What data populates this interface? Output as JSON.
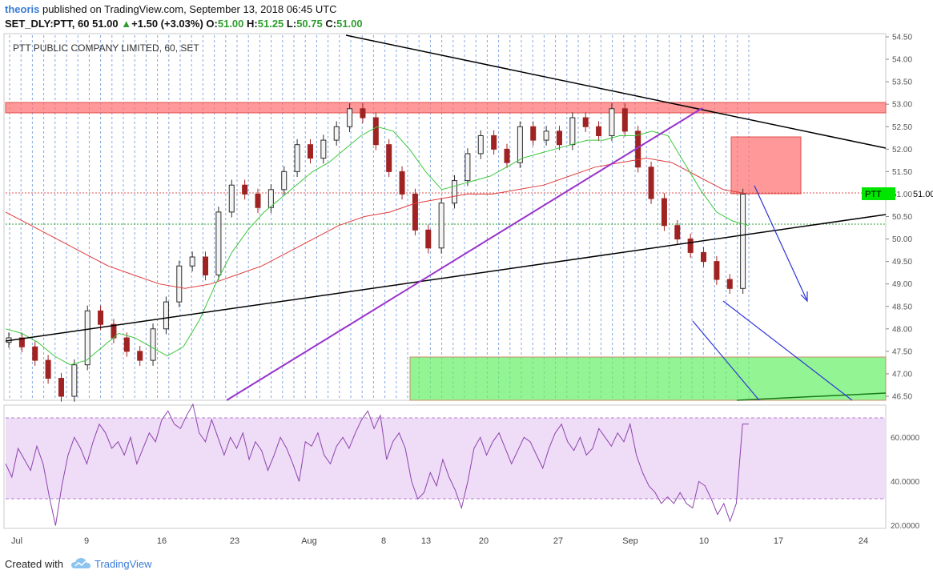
{
  "header": {
    "author": "theoris",
    "published_text": "published on TradingView.com, September 13, 2018 06:45 UTC",
    "symbol": "SET_DLY:PTT, 60",
    "last": "51.00",
    "change": "+1.50 (+3.03%)",
    "o_label": "O:",
    "o_value": "51.00",
    "h_label": "H:",
    "h_value": "51.25",
    "l_label": "L:",
    "l_value": "50.75",
    "c_label": "C:",
    "c_value": "51.00"
  },
  "footer": {
    "created_with": "Created with",
    "brand": "TradingView"
  },
  "colors": {
    "up_candle": "#2d2d2d",
    "down_candle": "#a02323",
    "ma_fast": "#3cc83c",
    "ma_slow": "#e03c3c",
    "trendline": "#000000",
    "purple_line": "#9933cc",
    "arrows": "#2d35d6",
    "resistance_zone": "#ff6e6e",
    "support_zone": "#64f064",
    "rsi": "#8e44ad",
    "rsi_band": "#efdcf7",
    "price_label_bg": "#00e600"
  },
  "chart_data": [
    {
      "type": "candlestick",
      "title": "PTT PUBLIC COMPANY LIMITED, 60, SET",
      "price_label": "PTT",
      "price_label_value": "51.00",
      "x_ticks": [
        "Jul",
        "9",
        "16",
        "23",
        "Aug",
        "8",
        "13",
        "20",
        "27",
        "Sep",
        "10",
        "17",
        "24"
      ],
      "y_ticks": [
        "46.50",
        "47.00",
        "47.50",
        "48.00",
        "48.50",
        "49.00",
        "49.50",
        "50.00",
        "50.50",
        "51.00",
        "51.50",
        "52.00",
        "52.50",
        "53.00",
        "53.50",
        "54.00",
        "54.50"
      ],
      "ylim": [
        46.5,
        54.5
      ],
      "grid": true,
      "series": [
        {
          "name": "",
          "values": [
            47.8,
            47.6,
            47.3,
            46.9,
            46.5,
            47.2,
            48.4,
            48.1,
            47.8,
            47.5,
            47.3,
            48.0,
            48.6,
            49.4,
            49.6,
            49.2,
            50.6,
            51.2,
            51.0,
            50.7,
            51.1,
            51.5,
            52.1,
            51.8,
            52.2,
            52.5,
            52.9,
            52.7,
            52.1,
            51.5,
            51.0,
            50.2,
            49.8,
            50.8,
            51.3,
            51.9,
            52.3,
            52.0,
            51.7,
            52.5,
            52.2,
            52.4,
            52.1,
            52.7,
            52.5,
            52.3,
            52.9,
            52.4,
            51.6,
            50.9,
            50.3,
            50.0,
            49.7,
            49.5,
            49.1,
            48.9,
            51.0
          ]
        },
        {
          "name": "",
          "values": [
            48.0,
            47.9,
            47.7,
            47.4,
            47.2,
            47.3,
            47.6,
            47.9,
            47.8,
            47.6,
            47.4,
            47.6,
            48.2,
            49.0,
            49.7,
            50.2,
            50.6,
            50.9,
            51.2,
            51.5,
            51.7,
            52.0,
            52.3,
            52.5,
            52.4,
            52.0,
            51.5,
            51.1,
            51.2,
            51.3,
            51.4,
            51.6,
            51.8,
            51.9,
            52.0,
            52.1,
            52.2,
            52.2,
            52.3,
            52.3,
            52.4,
            52.3,
            51.7,
            51.1,
            50.6,
            50.4,
            50.3
          ]
        },
        {
          "name": "",
          "values": [
            50.6,
            50.3,
            50.0,
            49.7,
            49.4,
            49.2,
            49.0,
            48.9,
            49.0,
            49.2,
            49.4,
            49.7,
            50.0,
            50.3,
            50.5,
            50.6,
            50.8,
            50.9,
            51.0,
            51.0,
            51.1,
            51.2,
            51.4,
            51.6,
            51.7,
            51.8,
            51.7,
            51.4,
            51.1,
            51.0
          ]
        }
      ],
      "annotations": {
        "resistance_zone": [
          52.75,
          53.0
        ],
        "support_zone": [
          46.5,
          47.4
        ],
        "target_box": [
          51.0,
          52.25
        ],
        "dotted_levels": [
          51.0,
          50.3
        ]
      }
    },
    {
      "type": "line",
      "title": "",
      "y_ticks": [
        "20.0000",
        "40.0000",
        "60.0000"
      ],
      "ylim": [
        18,
        75
      ],
      "bands": [
        30,
        70
      ],
      "series": [
        {
          "name": "",
          "values": [
            48,
            42,
            55,
            50,
            45,
            56,
            48,
            33,
            20,
            38,
            52,
            60,
            55,
            48,
            58,
            66,
            62,
            55,
            58,
            52,
            60,
            48,
            55,
            62,
            58,
            68,
            72,
            66,
            64,
            70,
            75,
            62,
            58,
            68,
            60,
            52,
            60,
            55,
            62,
            50,
            58,
            54,
            45,
            52,
            60,
            55,
            48,
            40,
            58,
            56,
            62,
            52,
            48,
            56,
            60,
            55,
            62,
            68,
            72,
            64,
            70,
            50,
            58,
            62,
            55,
            40,
            32,
            35,
            44,
            38,
            50,
            42,
            36,
            28,
            40,
            55,
            60,
            52,
            58,
            62,
            55,
            48,
            54,
            60,
            58,
            52,
            46,
            55,
            62,
            66,
            58,
            54,
            60,
            52,
            55,
            64,
            60,
            56,
            62,
            58,
            66,
            52,
            44,
            38,
            35,
            30,
            33,
            30,
            35,
            30,
            28,
            40,
            38,
            32,
            25,
            30,
            22,
            30,
            66,
            66
          ]
        }
      ]
    }
  ]
}
